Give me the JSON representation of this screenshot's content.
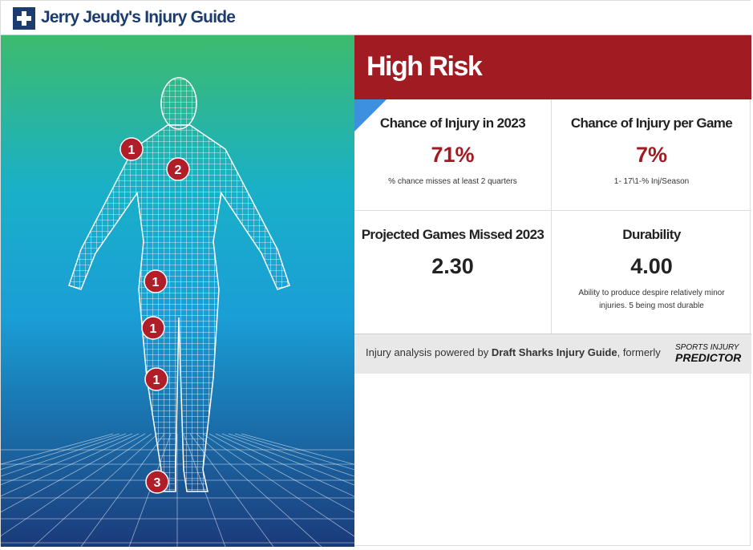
{
  "header": {
    "title": "Jerry Jeudy's Injury Guide"
  },
  "risk": {
    "label": "High Risk"
  },
  "stats": [
    {
      "title": "Chance of Injury in 2023",
      "value": "71%",
      "note": "% chance misses at least 2 quarters"
    },
    {
      "title": "Chance of Injury per Game",
      "value": "7%",
      "note": "1- 17\\1-% Inj/Season"
    },
    {
      "title": "Projected Games Missed 2023",
      "value": "2.30"
    },
    {
      "title": "Durability",
      "value": "4.00",
      "note": "Ability to produce despire relatively minor injuries. 5 being most durable"
    }
  ],
  "footer": {
    "text": "Injury analysis powered by",
    "brand": "Draft Sharks Injury Guide",
    "suffix": ", formerly",
    "logo_top": "SPORTS INJURY",
    "logo_bottom": "PREDICTOR"
  },
  "markers": [
    "1",
    "2",
    "1",
    "1",
    "1",
    "3"
  ]
}
